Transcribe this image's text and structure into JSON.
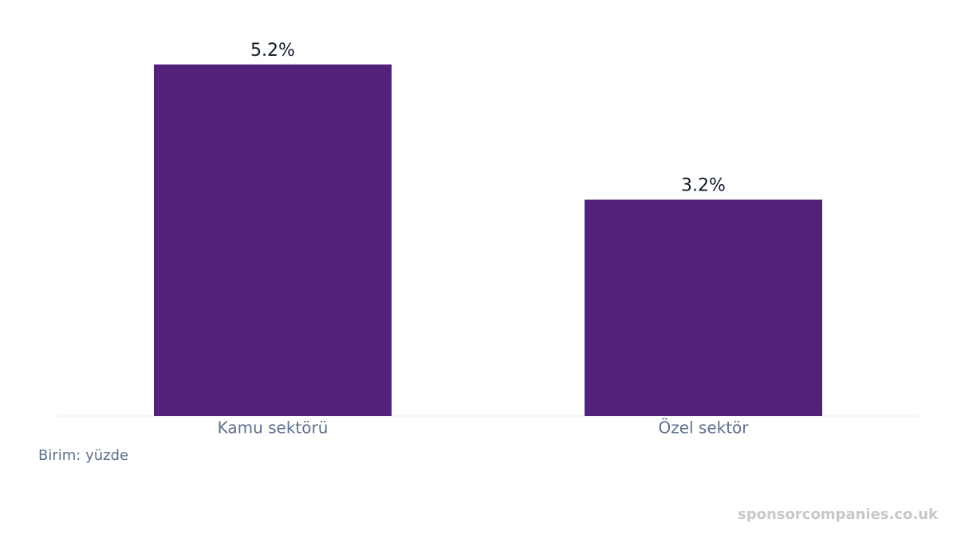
{
  "chart_data": {
    "type": "bar",
    "categories": [
      "Kamu sektörü",
      "Özel sektör"
    ],
    "values": [
      5.2,
      3.2
    ],
    "value_labels": [
      "5.2%",
      "3.2%"
    ],
    "color": "#52217a",
    "ylim": [
      0,
      6
    ],
    "note": "Birim: yüzde",
    "watermark": "sponsorcompanies.co.uk"
  }
}
